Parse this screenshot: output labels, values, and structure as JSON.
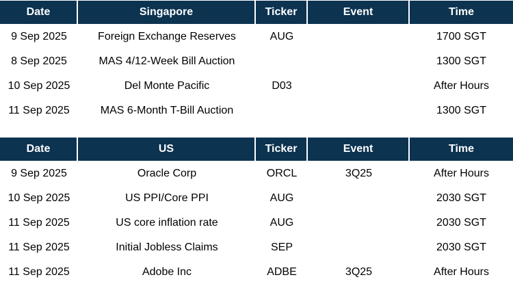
{
  "singapore": {
    "headers": {
      "date": "Date",
      "name": "Singapore",
      "ticker": "Ticker",
      "event": "Event",
      "time": "Time"
    },
    "rows": [
      {
        "date": "9 Sep 2025",
        "name": "Foreign Exchange Reserves",
        "ticker": "AUG",
        "event": "",
        "time": "1700 SGT"
      },
      {
        "date": "8 Sep 2025",
        "name": "MAS 4/12-Week Bill Auction",
        "ticker": "",
        "event": "",
        "time": "1300 SGT"
      },
      {
        "date": "10 Sep 2025",
        "name": "Del Monte Pacific",
        "ticker": "D03",
        "event": "",
        "time": "After Hours"
      },
      {
        "date": "11 Sep 2025",
        "name": "MAS 6-Month T-Bill Auction",
        "ticker": "",
        "event": "",
        "time": "1300 SGT"
      }
    ]
  },
  "us": {
    "headers": {
      "date": "Date",
      "name": "US",
      "ticker": "Ticker",
      "event": "Event",
      "time": "Time"
    },
    "rows": [
      {
        "date": "9 Sep 2025",
        "name": "Oracle Corp",
        "ticker": "ORCL",
        "event": "3Q25",
        "time": "After Hours"
      },
      {
        "date": "10 Sep 2025",
        "name": "US PPI/Core PPI",
        "ticker": "AUG",
        "event": "",
        "time": "2030 SGT"
      },
      {
        "date": "11 Sep 2025",
        "name": "US core inflation rate",
        "ticker": "AUG",
        "event": "",
        "time": "2030 SGT"
      },
      {
        "date": "11 Sep 2025",
        "name": "Initial Jobless Claims",
        "ticker": "SEP",
        "event": "",
        "time": "2030 SGT"
      },
      {
        "date": "11 Sep 2025",
        "name": "Adobe Inc",
        "ticker": "ADBE",
        "event": "3Q25",
        "time": "After Hours"
      }
    ]
  },
  "colors": {
    "header_background": "#0c3350",
    "header_text": "#ffffff",
    "body_text": "#000000"
  }
}
